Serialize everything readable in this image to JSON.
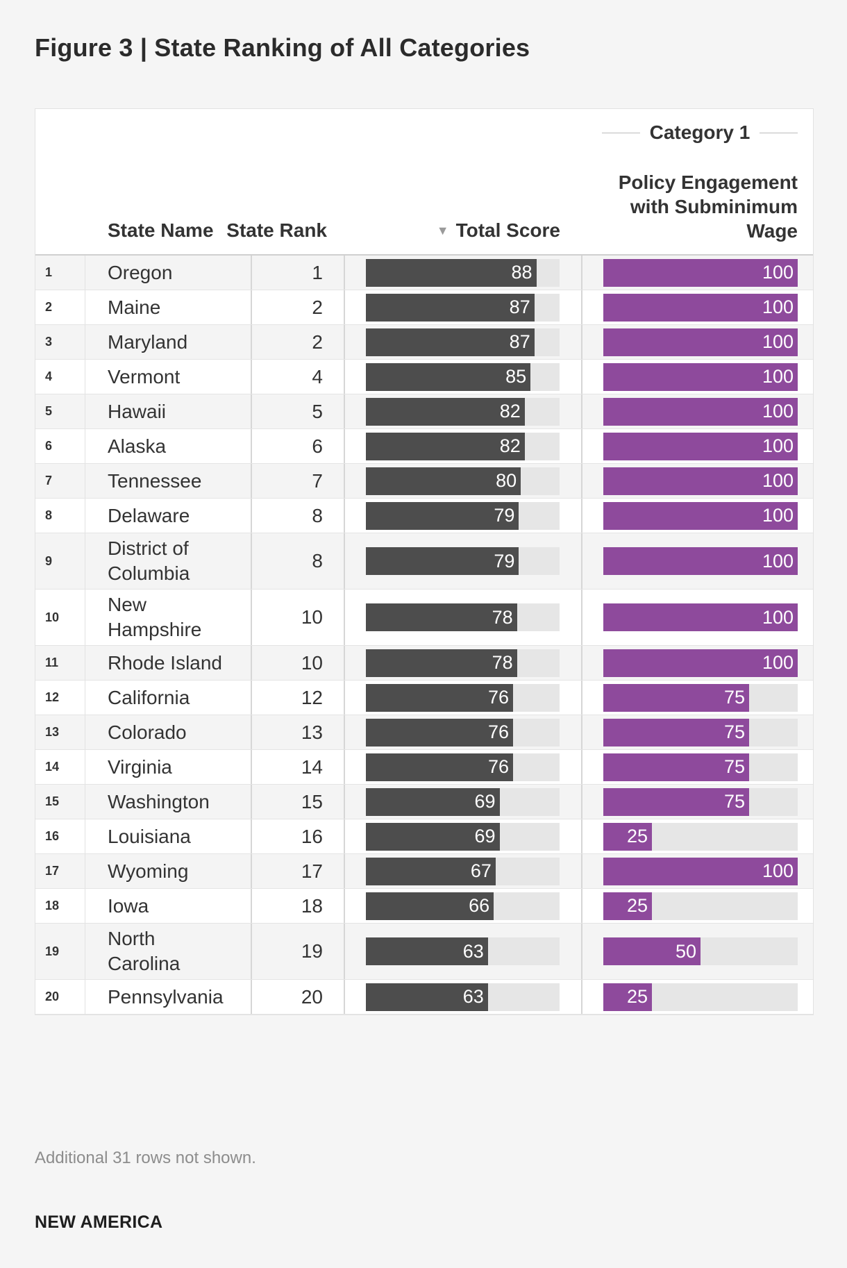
{
  "title": "Figure 3 | State Ranking of All Categories",
  "headers": {
    "state_name": "State Name",
    "state_rank": "State Rank",
    "total_score": "Total Score",
    "category_group": "Category 1",
    "category_name": "Policy Engagement with Subminimum Wage"
  },
  "icons": {
    "sort": "sort-descending-icon"
  },
  "colors": {
    "total_bar": "#4d4d4d",
    "category_bar": "#8e4a9c",
    "track": "#e6e6e6"
  },
  "footnote": "Additional 31 rows not shown.",
  "brand": "NEW AMERICA",
  "chart_data": {
    "type": "table",
    "title": "Figure 3 | State Ranking of All Categories",
    "columns": [
      "#",
      "State Name",
      "State Rank",
      "Total Score",
      "Policy Engagement with Subminimum Wage"
    ],
    "total_score_max": 100,
    "category_max": 100,
    "rows": [
      {
        "idx": "1",
        "state": "Oregon",
        "rank": "1",
        "total": 88,
        "cat1": 100
      },
      {
        "idx": "2",
        "state": "Maine",
        "rank": "2",
        "total": 87,
        "cat1": 100
      },
      {
        "idx": "3",
        "state": "Maryland",
        "rank": "2",
        "total": 87,
        "cat1": 100
      },
      {
        "idx": "4",
        "state": "Vermont",
        "rank": "4",
        "total": 85,
        "cat1": 100
      },
      {
        "idx": "5",
        "state": "Hawaii",
        "rank": "5",
        "total": 82,
        "cat1": 100
      },
      {
        "idx": "6",
        "state": "Alaska",
        "rank": "6",
        "total": 82,
        "cat1": 100
      },
      {
        "idx": "7",
        "state": "Tennessee",
        "rank": "7",
        "total": 80,
        "cat1": 100
      },
      {
        "idx": "8",
        "state": "Delaware",
        "rank": "8",
        "total": 79,
        "cat1": 100
      },
      {
        "idx": "9",
        "state": "District of Columbia",
        "rank": "8",
        "total": 79,
        "cat1": 100
      },
      {
        "idx": "10",
        "state": "New Hampshire",
        "rank": "10",
        "total": 78,
        "cat1": 100
      },
      {
        "idx": "11",
        "state": "Rhode Island",
        "rank": "10",
        "total": 78,
        "cat1": 100
      },
      {
        "idx": "12",
        "state": "California",
        "rank": "12",
        "total": 76,
        "cat1": 75
      },
      {
        "idx": "13",
        "state": "Colorado",
        "rank": "13",
        "total": 76,
        "cat1": 75
      },
      {
        "idx": "14",
        "state": "Virginia",
        "rank": "14",
        "total": 76,
        "cat1": 75
      },
      {
        "idx": "15",
        "state": "Washington",
        "rank": "15",
        "total": 69,
        "cat1": 75
      },
      {
        "idx": "16",
        "state": "Louisiana",
        "rank": "16",
        "total": 69,
        "cat1": 25
      },
      {
        "idx": "17",
        "state": "Wyoming",
        "rank": "17",
        "total": 67,
        "cat1": 100
      },
      {
        "idx": "18",
        "state": "Iowa",
        "rank": "18",
        "total": 66,
        "cat1": 25
      },
      {
        "idx": "19",
        "state": "North Carolina",
        "rank": "19",
        "total": 63,
        "cat1": 50
      },
      {
        "idx": "20",
        "state": "Pennsylvania",
        "rank": "20",
        "total": 63,
        "cat1": 25
      }
    ]
  }
}
